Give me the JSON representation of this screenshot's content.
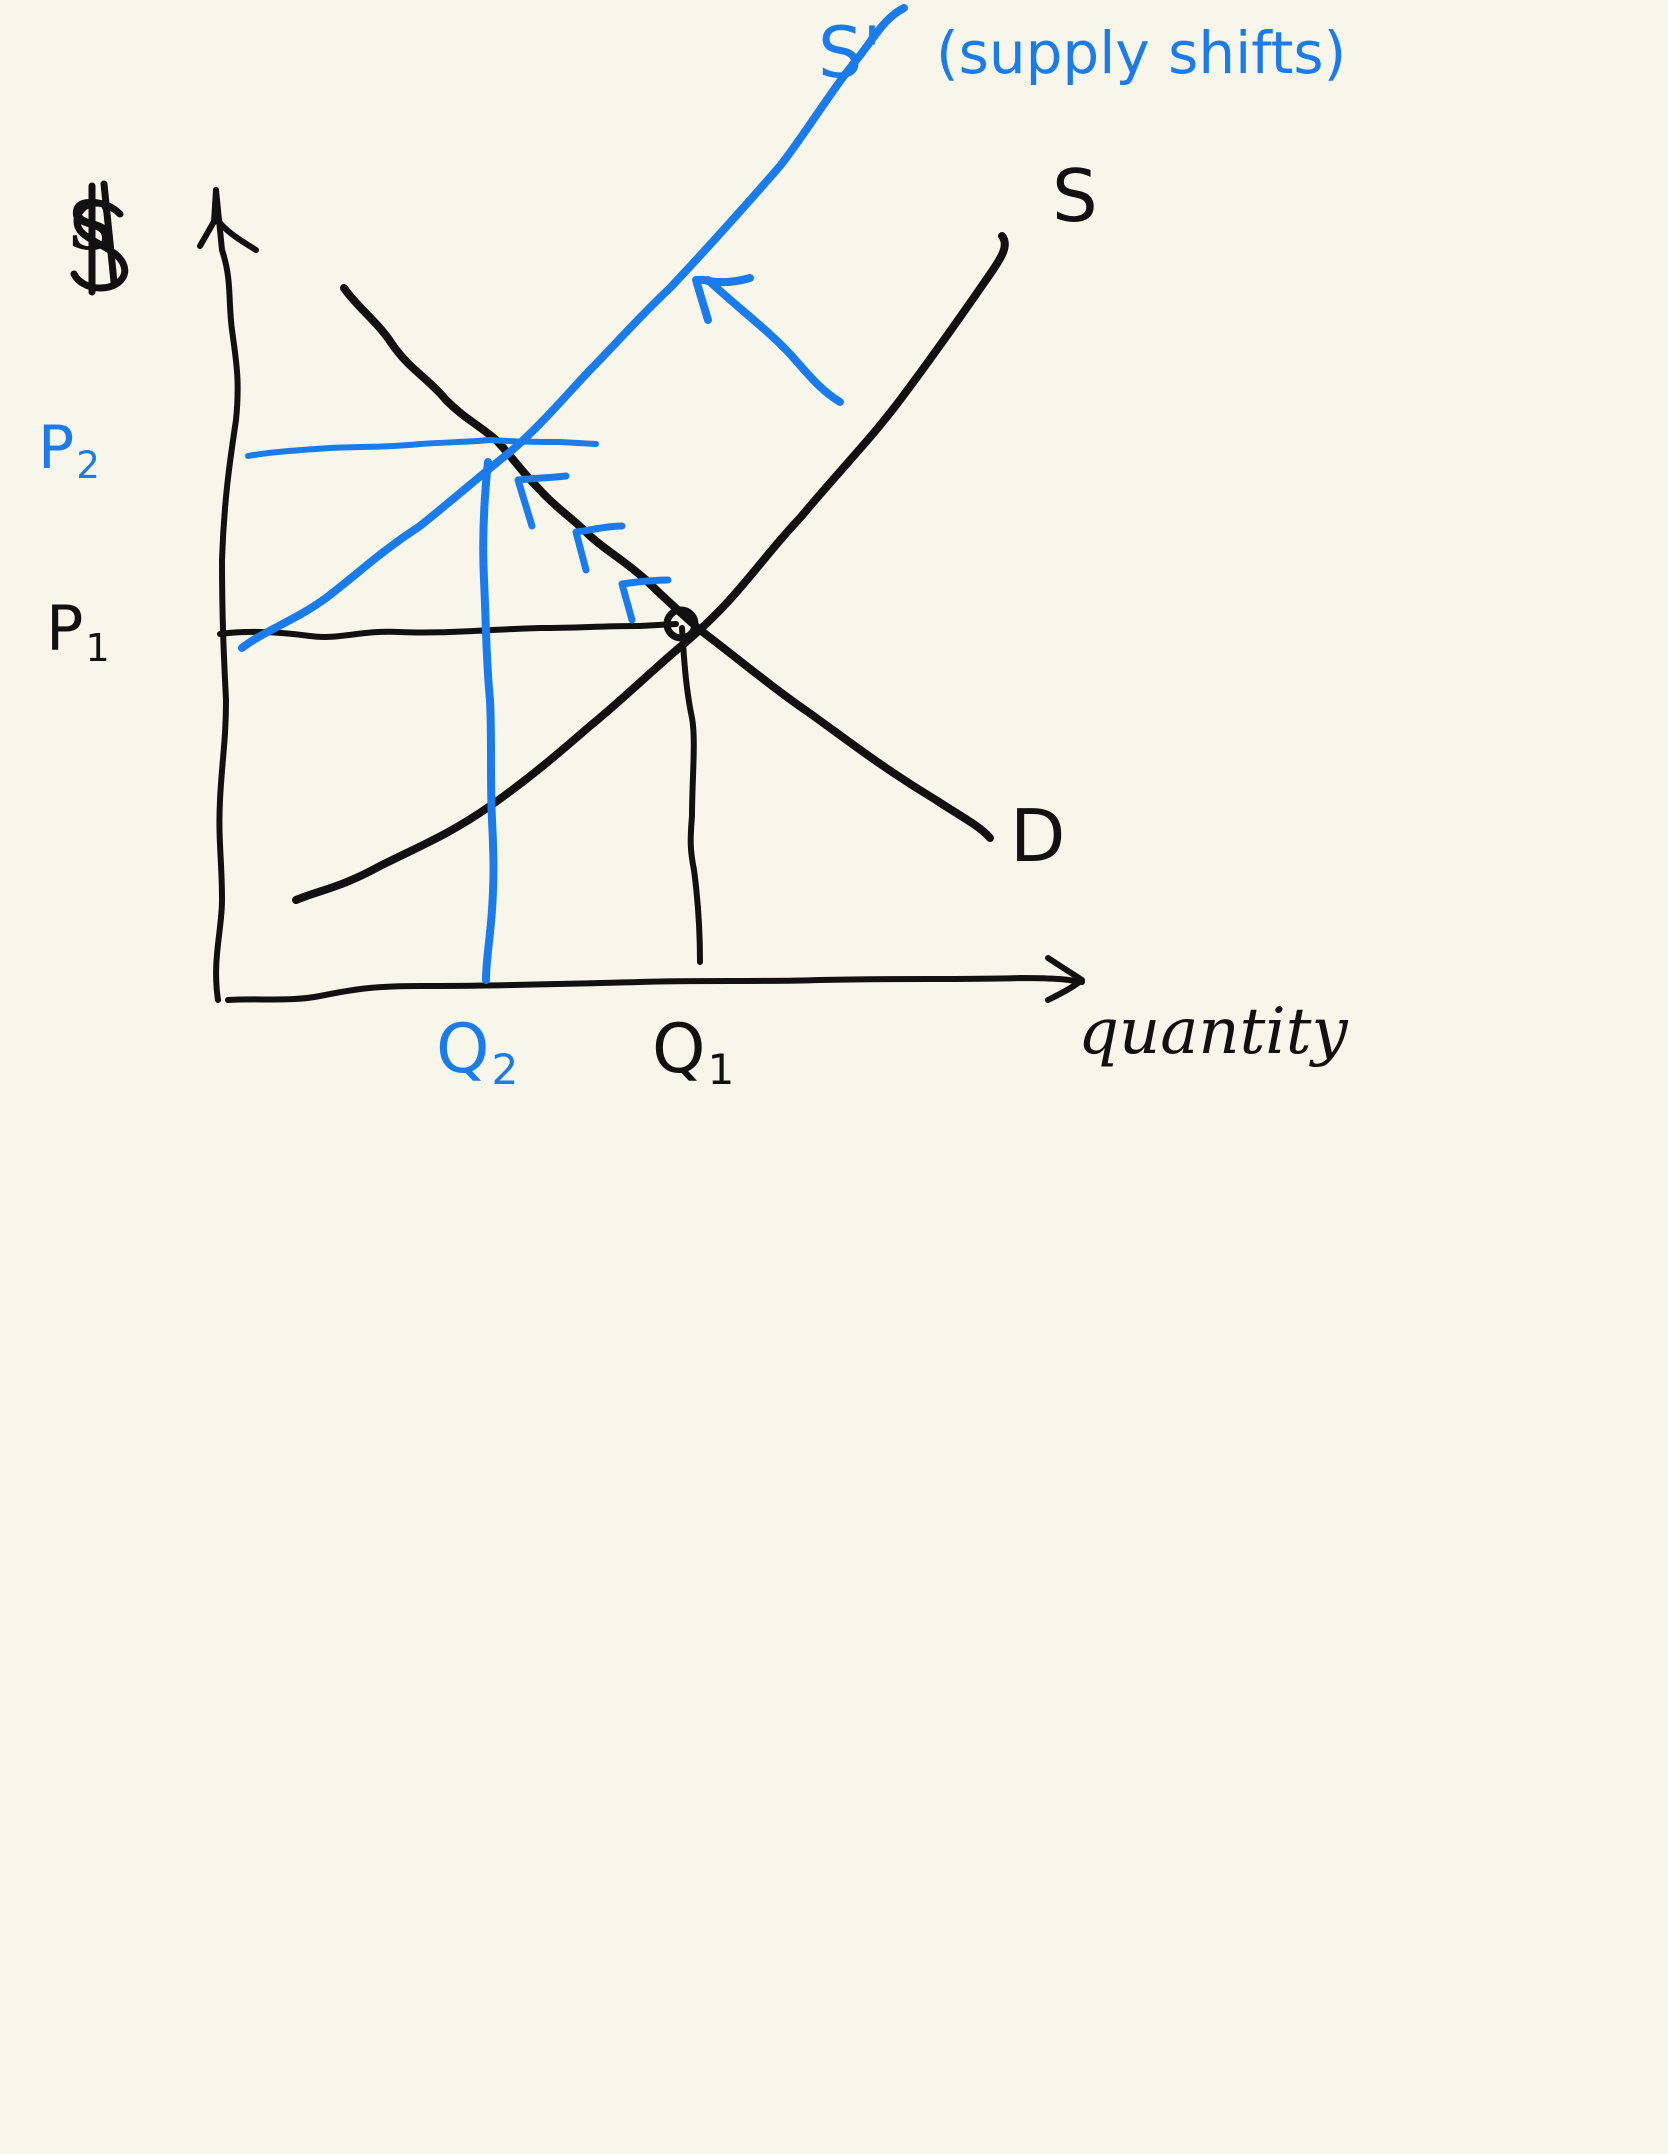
{
  "diagram": {
    "axes": {
      "y_label": "$",
      "x_label": "quantity"
    },
    "curves": {
      "supply_original": "S",
      "supply_shifted": "S'",
      "supply_shifted_note": "(supply shifts)",
      "demand": "D"
    },
    "prices": {
      "p1": {
        "letter": "P",
        "sub": "1"
      },
      "p2": {
        "letter": "P",
        "sub": "2"
      }
    },
    "quantities": {
      "q1": {
        "letter": "Q",
        "sub": "1"
      },
      "q2": {
        "letter": "Q",
        "sub": "2"
      }
    }
  },
  "colors": {
    "background": "#f8f6ea",
    "ink": "#111111",
    "shift_ink": "#1a7cec"
  }
}
